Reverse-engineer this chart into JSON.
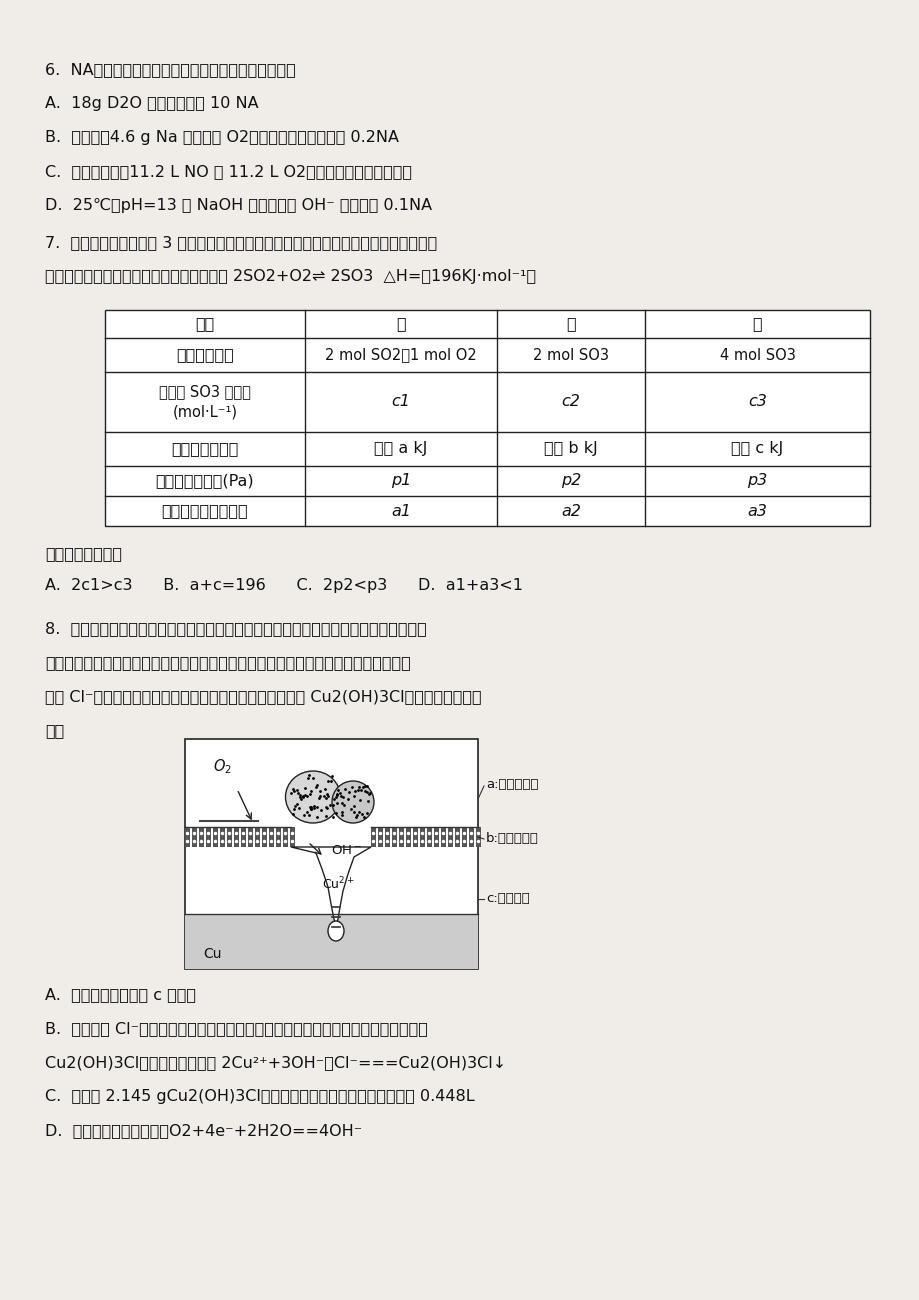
{
  "bg": "#f0ede8",
  "q6_line0": "6.  NA表示阿伏加德罗常数的值。下列说法中正确的是",
  "q6_lineA": "A.  18g D2O 含有电子数为 10 NA",
  "q6_lineB": "B.  常温下，4.6 g Na 和足量的 O2完全反应失去电子数为 0.2NA",
  "q6_lineC": "C.  标准状况下，11.2 L NO 和 11.2 L O2混合后气体的分子总数为",
  "q6_lineD": "D.  25℃，pH=13 的 NaOH 溶液中含有 OH⁻ 的数目为 0.1NA",
  "q7_line0": "7.  在温度、容积相同的 3 个密闭容器中，按不同方式投入反应物，保持恒温、恒容，测",
  "q7_line1": "得反应达到平衡时的有关数据如下：（已知 2SO2+O2⇌ 2SO3  △H=－196KJ·mol⁻¹）",
  "th0": "容器",
  "th1": "甲",
  "th2": "乙",
  "th3": "丙",
  "tr1c0": "反应物投入量",
  "tr1c1": "2 mol SO2、1 mol O2",
  "tr1c2": "2 mol SO3",
  "tr1c3": "4 mol SO3",
  "tr2c0a": "平衡时 SO3 的浓度",
  "tr2c0b": "(mol·L⁻¹)",
  "tr2c1": "c1",
  "tr2c2": "c2",
  "tr2c3": "c3",
  "tr3c0": "反应的能量变化",
  "tr3c1": "放出 a kJ",
  "tr3c2": "吸收 b kJ",
  "tr3c3": "吸收 c kJ",
  "tr4c0": "平衡时体系压强(Pa)",
  "tr4c1": "p1",
  "tr4c2": "p2",
  "tr4c3": "p3",
  "tr5c0": "平衡时反应物转化率",
  "tr5c1": "a1",
  "tr5c2": "a2",
  "tr5c3": "a3",
  "q7_sub": "下列说法正确的是",
  "q7_opts": "A.  2c1>c3      B.  a+c=196      C.  2p2<p3      D.  a1+a3<1",
  "q8_line0": "8.  青铜器的制造是中华民族劳动人民智慧的结晶，成为一个时代的象征，但出土的青铜",
  "q8_line1": "器大多受到环境腐蚀。如图为青铜器在潮湿环境中发生电化学腐蚀的原理示意图。环境",
  "q8_line2": "中的 Cl⁻扩散到孔口，并与各电极产物作用生成多孔粉状锈 Cu2(OH)3Cl。下列说法不正确",
  "q8_line3": "的是",
  "q8_A": "A.  腐蚀过程中，负极 c 被氧化",
  "q8_B": "B.  环境中的 Cl⁻扩散到孔口，并与正极反应产物和负极反应产物作用生成多孔粉状锈",
  "q8_B2": "Cu2(OH)3Cl，其离子方程式为 2Cu²⁺+3OH⁻十Cl⁻===Cu2(OH)3Cl↓",
  "q8_C": "C.  若生成 2.145 gCu2(OH)3Cl，则理论上消耗标准状况氧气体积为 0.448L",
  "q8_D": "D.  正极的电极反应式为：O2+4e⁻+2H2O==4OH⁻"
}
